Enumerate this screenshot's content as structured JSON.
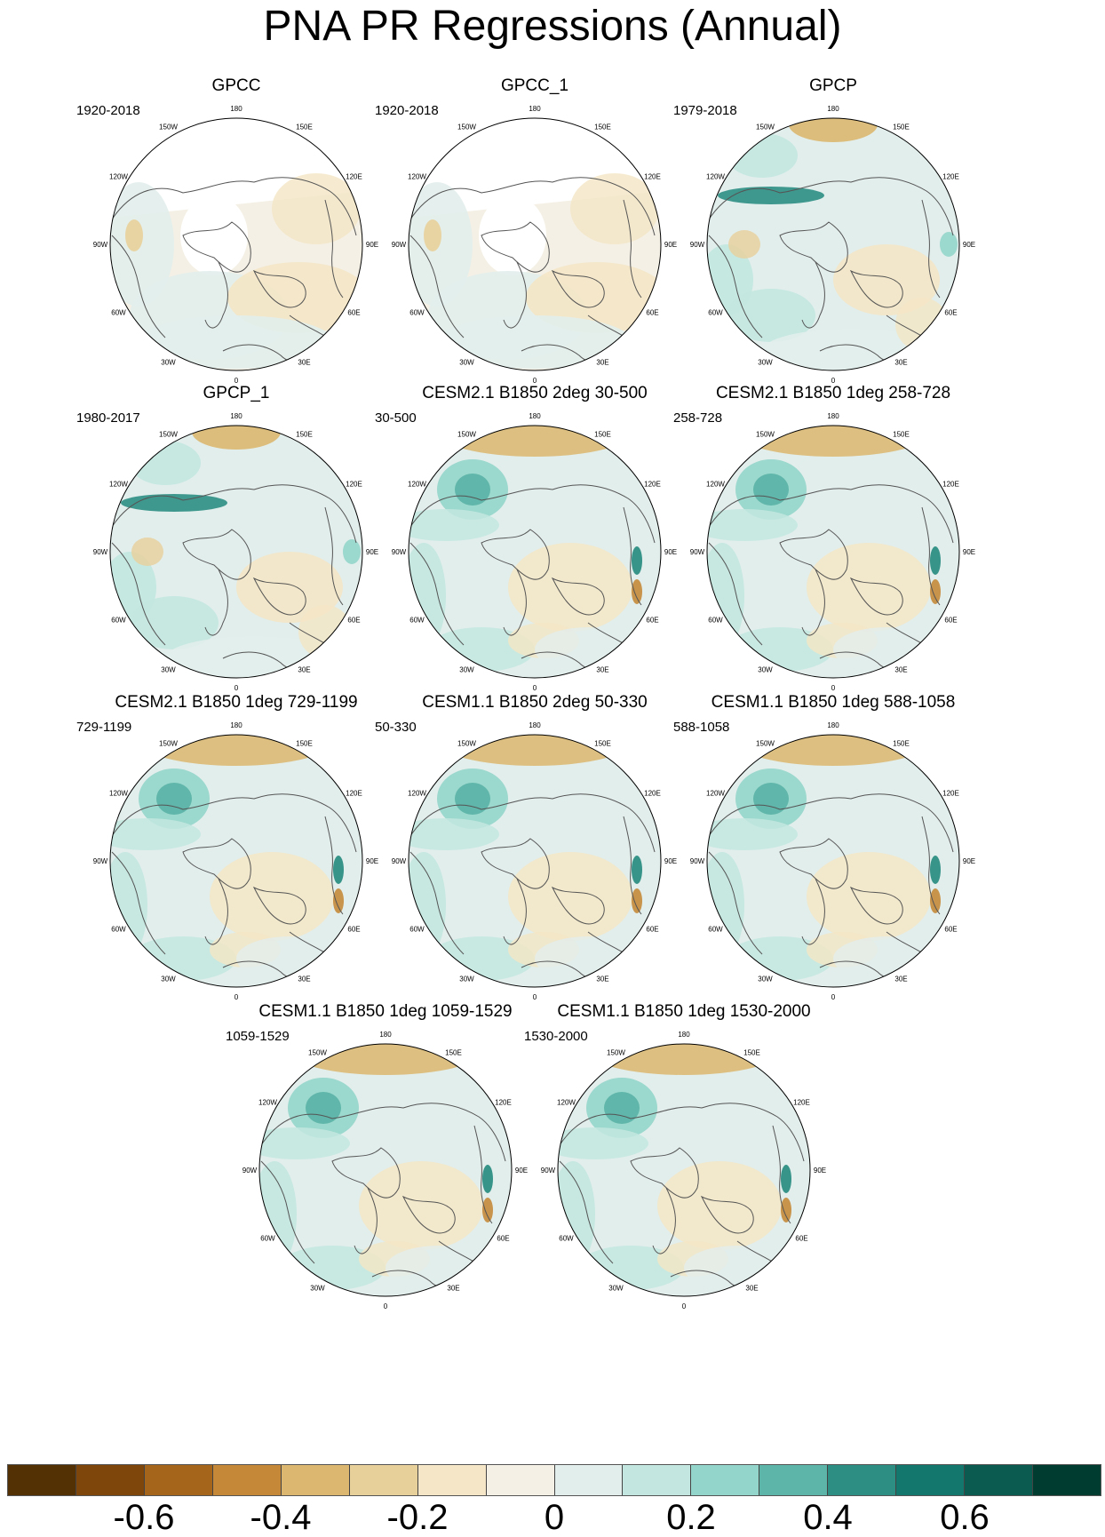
{
  "title": "PNA PR Regressions (Annual)",
  "longitude_labels": [
    "180",
    "150E",
    "120E",
    "90E",
    "60E",
    "30E",
    "0",
    "30W",
    "60W",
    "90W",
    "120W",
    "150W"
  ],
  "panels": [
    {
      "title": "GPCC",
      "period": "1920-2018",
      "style": "gpcc"
    },
    {
      "title": "GPCC_1",
      "period": "1920-2018",
      "style": "gpcc"
    },
    {
      "title": "GPCP",
      "period": "1979-2018",
      "style": "gpcp"
    },
    {
      "title": "GPCP_1",
      "period": "1980-2017",
      "style": "gpcp"
    },
    {
      "title": "CESM2.1 B1850 2deg 30-500",
      "period": "30-500",
      "style": "model"
    },
    {
      "title": "CESM2.1 B1850 1deg 258-728",
      "period": "258-728",
      "style": "model"
    },
    {
      "title": "CESM2.1 B1850 1deg 729-1199",
      "period": "729-1199",
      "style": "model"
    },
    {
      "title": "CESM1.1 B1850 2deg 50-330",
      "period": "50-330",
      "style": "model"
    },
    {
      "title": "CESM1.1 B1850 1deg 588-1058",
      "period": "588-1058",
      "style": "model"
    },
    {
      "title": "CESM1.1 B1850 1deg 1059-1529",
      "period": "1059-1529",
      "style": "model"
    },
    {
      "title": "CESM1.1 B1850 1deg 1530-2000",
      "period": "1530-2000",
      "style": "model"
    }
  ],
  "colorbar": {
    "colors": [
      "#543005",
      "#7f460c",
      "#a5661b",
      "#c58838",
      "#dcb76f",
      "#e8d09b",
      "#f4e6c6",
      "#f4f0e5",
      "#e2eeec",
      "#c3e7e0",
      "#93d5ca",
      "#5db4a8",
      "#2d8e84",
      "#13776d",
      "#0b5b51",
      "#003c30"
    ],
    "labels": [
      "-0.6",
      "-0.4",
      "-0.2",
      "0",
      "0.2",
      "0.4",
      "0.6"
    ],
    "label_values": [
      -0.6,
      -0.4,
      -0.2,
      0,
      0.2,
      0.4,
      0.6
    ],
    "range": [
      -0.8,
      0.8
    ]
  }
}
